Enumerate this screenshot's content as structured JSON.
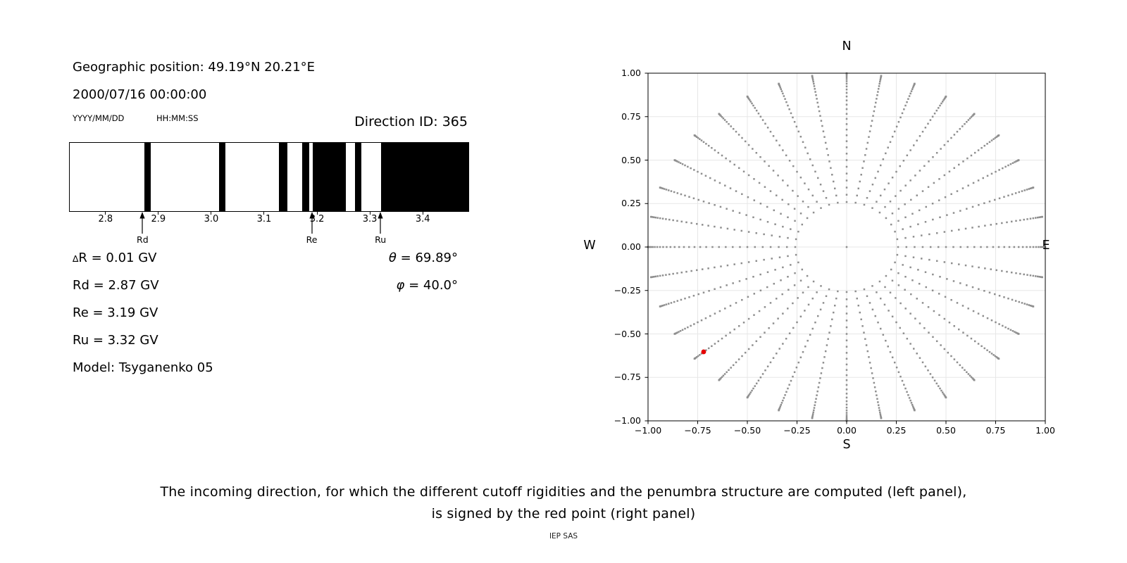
{
  "header": {
    "geo_position": "Geographic position: 49.19°N 20.21°E",
    "datetime": "2000/07/16 00:00:00",
    "date_format": "YYYY/MM/DD",
    "time_format": "HH:MM:SS",
    "direction_id": "Direction ID: 365"
  },
  "info": {
    "rows": [
      {
        "symbol": "∆",
        "text": "R = 0.01 GV"
      },
      {
        "symbol": "",
        "text": "Rd = 2.87 GV"
      },
      {
        "symbol": "",
        "text": "Re = 3.19 GV"
      },
      {
        "symbol": "",
        "text": "Ru = 3.32 GV"
      },
      {
        "symbol": "",
        "text": "Model: Tsyganenko 05"
      }
    ],
    "angles": [
      {
        "symbol": "θ",
        "text": " = 69.89°"
      },
      {
        "symbol": "φ",
        "text": " = 40.0°"
      }
    ]
  },
  "chart_data": [
    {
      "type": "bar",
      "name": "penumbra-structure",
      "xlim": [
        2.731,
        3.485
      ],
      "x_ticks": [
        2.8,
        2.9,
        3.0,
        3.1,
        3.2,
        3.3,
        3.4
      ],
      "x_tick_labels": [
        "2.8",
        "2.9",
        "3.0",
        "3.1",
        "3.2",
        "3.3",
        "3.4"
      ],
      "forbidden_bands_gv": [
        [
          2.872,
          2.884
        ],
        [
          3.014,
          3.025
        ],
        [
          3.127,
          3.142
        ],
        [
          3.171,
          3.184
        ],
        [
          3.191,
          3.253
        ],
        [
          3.271,
          3.282
        ],
        [
          3.32,
          3.485
        ]
      ],
      "band_color": "#000000",
      "allowed_color": "#ffffff",
      "arrows": [
        {
          "label": "Rd",
          "value": 2.87
        },
        {
          "label": "Re",
          "value": 3.19
        },
        {
          "label": "Ru",
          "value": 3.32
        }
      ]
    },
    {
      "type": "scatter",
      "name": "incoming-directions",
      "xlim": [
        -1,
        1
      ],
      "ylim": [
        -1,
        1
      ],
      "tick_step": 0.25,
      "x_tick_labels": [
        "−1.00",
        "−0.75",
        "−0.50",
        "−0.25",
        "0.00",
        "0.25",
        "0.50",
        "0.75",
        "1.00"
      ],
      "y_tick_labels": [
        "1.00",
        "0.75",
        "0.50",
        "0.25",
        "0.00",
        "−0.25",
        "−0.50",
        "−0.75",
        "−1.00"
      ],
      "compass": {
        "top": "N",
        "bottom": "S",
        "left": "W",
        "right": "E"
      },
      "grid": true,
      "grid_color": "#e7e7e7",
      "dot_color": "#8f8f8f",
      "dot_size_px": 2.5,
      "spokes": {
        "azimuth_count": 36,
        "azimuth_step_deg": 10,
        "zenith_start_deg": 15,
        "zenith_end_deg": 90,
        "zenith_step_deg": 2.5,
        "radius_mapping": "sin(zenith)"
      },
      "center_dot": {
        "x": 0,
        "y": 0
      },
      "red_point": {
        "x": -0.72,
        "y": -0.603,
        "theta_deg": 69.89,
        "phi_deg": 40.0,
        "azimuth_screen_deg": 220,
        "color": "#e60000"
      }
    }
  ],
  "caption": {
    "line1": "The incoming direction, for which the different cutoff rigidities and the penumbra structure are computed (left panel),",
    "line2": "is signed by the red point (right panel)",
    "credit": "IEP SAS"
  }
}
